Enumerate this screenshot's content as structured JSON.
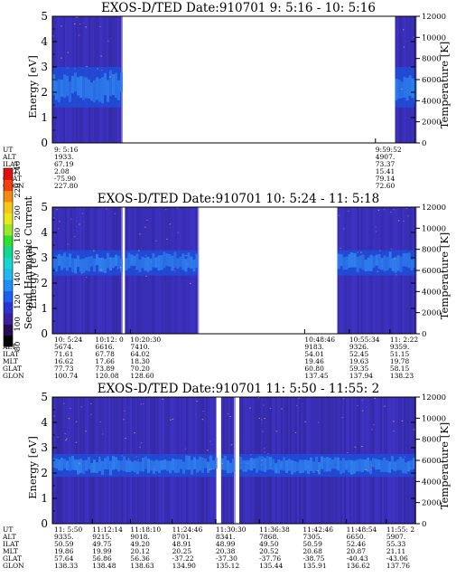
{
  "colors": {
    "background": "#3a2fb8",
    "band_core": "#2f86f0",
    "band_edge": "#1f4ed8",
    "speckle": "#e8b84a"
  },
  "colorbar": {
    "label": "Second Harmonic Current",
    "ticks": [
      "80",
      "100",
      "120",
      "140",
      "160",
      "180",
      "200",
      "220",
      "240"
    ],
    "colors": [
      "#000000",
      "#2a0a55",
      "#3a1fa0",
      "#2a35d0",
      "#1c5ef0",
      "#1f8df5",
      "#1fb8f0",
      "#17d6d0",
      "#10d890",
      "#30e030",
      "#9ae62a",
      "#e8e81a",
      "#f5c818",
      "#f58a10",
      "#f04010",
      "#e01010"
    ]
  },
  "chart_data": [
    {
      "type": "heatmap",
      "title": "EXOS-D/TED   Date:910701  9: 5:16 - 10: 5:16",
      "ylabel": "Energy [eV]",
      "y2label": "Temperature [K]",
      "ylim": [
        0,
        5
      ],
      "y2lim": [
        0,
        12000
      ],
      "yticks": [
        "0",
        "1",
        "2",
        "3",
        "4",
        "5"
      ],
      "y2ticks": [
        "0",
        "2000",
        "4000",
        "6000",
        "8000",
        "10000",
        "12000"
      ],
      "data_segments": [
        [
          0.0,
          0.19
        ],
        [
          0.944,
          1.0
        ]
      ],
      "band_center_eV": 2.2,
      "band_halfwidth_eV": 0.8,
      "labels": [
        {
          "ut": "9: 5:16",
          "alt": "1933.",
          "ilat": "67.19",
          "mlt": "2.08",
          "glat": "-75.90",
          "glon": "227.80"
        },
        {
          "ut": "9:59:52",
          "alt": "4907.",
          "ilat": "73.37",
          "mlt": "15.41",
          "glat": "79.14",
          "glon": "72.60"
        }
      ]
    },
    {
      "type": "heatmap",
      "title": "EXOS-D/TED   Date:910701  10: 5:24 - 11: 5:18",
      "ylabel": "Energy [eV]",
      "y2label": "Temperature [K]",
      "ylim": [
        0,
        5
      ],
      "y2lim": [
        0,
        12000
      ],
      "yticks": [
        "0",
        "1",
        "2",
        "3",
        "4",
        "5"
      ],
      "y2ticks": [
        "0",
        "2000",
        "4000",
        "6000",
        "8000",
        "10000",
        "12000"
      ],
      "data_segments": [
        [
          0.0,
          0.19
        ],
        [
          0.2,
          0.4
        ],
        [
          0.785,
          1.0
        ]
      ],
      "band_center_eV": 2.8,
      "band_halfwidth_eV": 0.5,
      "labels": [
        {
          "ut": "10: 5:24",
          "alt": "5674.",
          "ilat": "71.61",
          "mlt": "16.62",
          "glat": "77.73",
          "glon": "100.74"
        },
        {
          "ut": "10:12: 0",
          "alt": "6616.",
          "ilat": "67.78",
          "mlt": "17.66",
          "glat": "73.89",
          "glon": "120.08"
        },
        {
          "ut": "10:20:30",
          "alt": "7410.",
          "ilat": "64.02",
          "mlt": "18.30",
          "glat": "70.20",
          "glon": "128.60"
        },
        {
          "ut": "10:48:46",
          "alt": "9183.",
          "ilat": "54.01",
          "mlt": "19.46",
          "glat": "60.80",
          "glon": "137.45"
        },
        {
          "ut": "10:55:34",
          "alt": "9326.",
          "ilat": "52.45",
          "mlt": "19.63",
          "glat": "59.35",
          "glon": "137.94"
        },
        {
          "ut": "11: 2:22",
          "alt": "9359.",
          "ilat": "51.15",
          "mlt": "19.78",
          "glat": "58.15",
          "glon": "138.23"
        }
      ]
    },
    {
      "type": "heatmap",
      "title": "EXOS-D/TED   Date:910701  11: 5:50 - 11:55: 2",
      "ylabel": "Energy [eV]",
      "y2label": "Temperature [K]",
      "ylim": [
        0,
        5
      ],
      "y2lim": [
        0,
        12000
      ],
      "yticks": [
        "0",
        "1",
        "2",
        "3",
        "4",
        "5"
      ],
      "y2ticks": [
        "0",
        "2000",
        "4000",
        "6000",
        "8000",
        "10000",
        "12000"
      ],
      "data_segments": [
        [
          0.0,
          0.45
        ],
        [
          0.465,
          0.5
        ],
        [
          0.515,
          1.0
        ]
      ],
      "band_center_eV": 2.3,
      "band_halfwidth_eV": 0.45,
      "labels": [
        {
          "ut": "11: 5:50",
          "alt": "9335.",
          "ilat": "50.59",
          "mlt": "19.86",
          "glat": "57.64",
          "glon": "138.33"
        },
        {
          "ut": "11:12:14",
          "alt": "9215.",
          "ilat": "49.75",
          "mlt": "19.99",
          "glat": "56.86",
          "glon": "138.48"
        },
        {
          "ut": "11:18:10",
          "alt": "9018.",
          "ilat": "49.20",
          "mlt": "20.12",
          "glat": "56.36",
          "glon": "138.63"
        },
        {
          "ut": "11:24:46",
          "alt": "8701.",
          "ilat": "48.91",
          "mlt": "20.25",
          "glat": "-37.22",
          "glon": "134.90"
        },
        {
          "ut": "11:30:30",
          "alt": "8341.",
          "ilat": "48.99",
          "mlt": "20.38",
          "glat": "-37.30",
          "glon": "135.12"
        },
        {
          "ut": "11:36:38",
          "alt": "7868.",
          "ilat": "49.50",
          "mlt": "20.52",
          "glat": "-37.76",
          "glon": "135.44"
        },
        {
          "ut": "11:42:46",
          "alt": "7305.",
          "ilat": "50.59",
          "mlt": "20.68",
          "glat": "-38.75",
          "glon": "135.91"
        },
        {
          "ut": "11:48:54",
          "alt": "6650.",
          "ilat": "52.46",
          "mlt": "20.87",
          "glat": "-40.43",
          "glon": "136.62"
        },
        {
          "ut": "11:55: 2",
          "alt": "5907.",
          "ilat": "55.33",
          "mlt": "21.11",
          "glat": "-43.06",
          "glon": "137.76"
        }
      ]
    }
  ],
  "row_labels": [
    "UT",
    "ALT",
    "ILAT",
    "MLT",
    "GLAT",
    "GLON"
  ]
}
